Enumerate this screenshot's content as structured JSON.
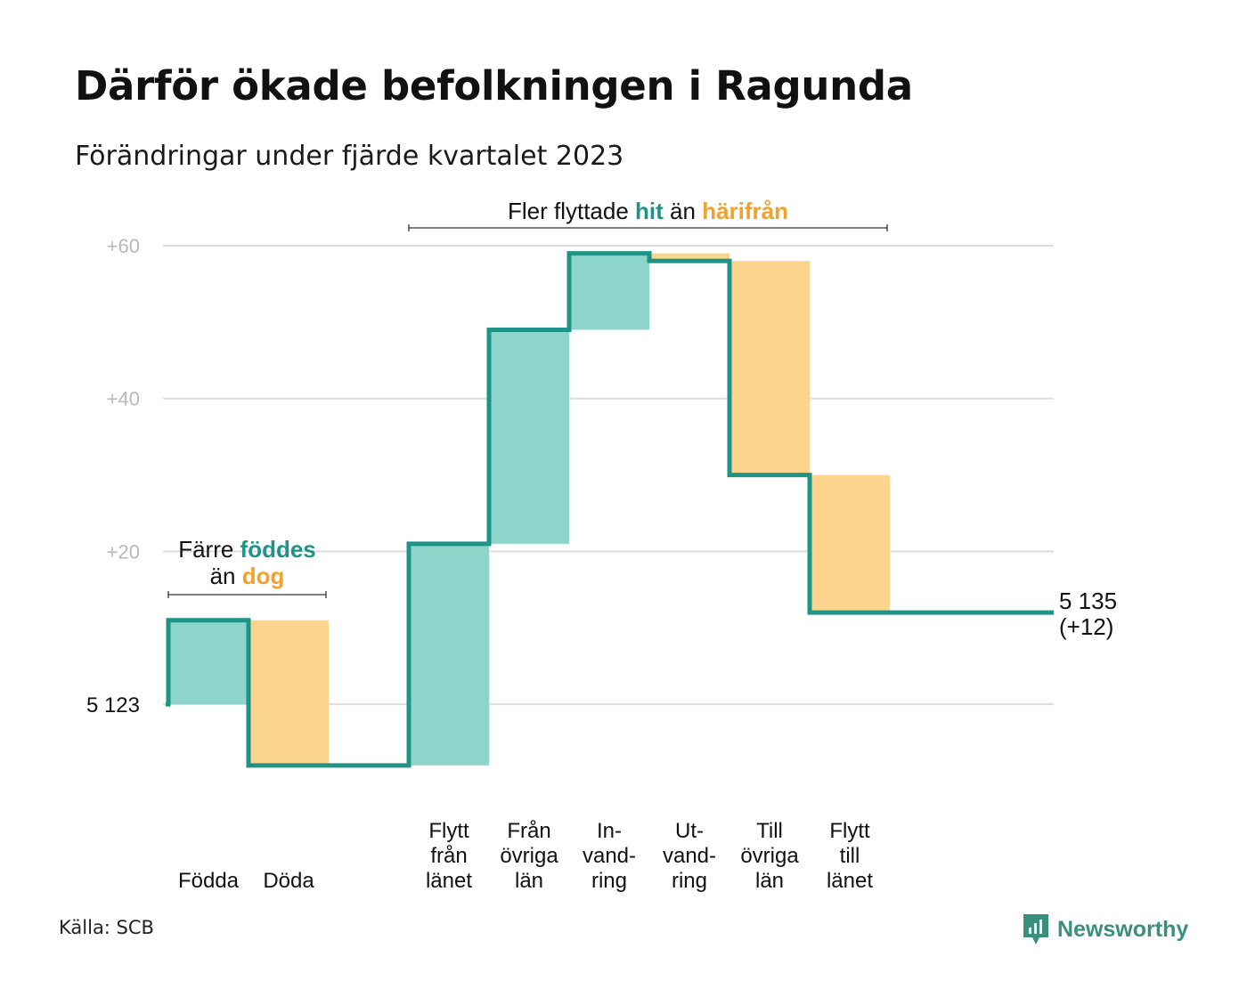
{
  "header": {
    "title": "Därför ökade befolkningen i Ragunda",
    "subtitle": "Förändringar under fjärde kvartalet 2023"
  },
  "footer": {
    "source": "Källa: SCB",
    "brand": "Newsworthy",
    "brand_icon": "newsworthy-logo-icon"
  },
  "colors": {
    "increase": "#8dd5cb",
    "decrease": "#fbd58d",
    "line": "#1f9486",
    "teal_text": "#1f9486",
    "orange_text": "#f2a12e",
    "grid": "#dddddd",
    "tick": "#b8b8b8"
  },
  "chart_data": {
    "type": "waterfall",
    "title": "Därför ökade befolkningen i Ragunda",
    "subtitle": "Förändringar under fjärde kvartalet 2023",
    "baseline_label": "5  123",
    "start_value": 5123,
    "ylim": [
      -10,
      60
    ],
    "grid": true,
    "yticks": [
      {
        "value": 20,
        "label": "+20"
      },
      {
        "value": 40,
        "label": "+40"
      },
      {
        "value": 60,
        "label": "+60"
      }
    ],
    "categories": [
      {
        "lines": [
          "Födda"
        ],
        "change": 11
      },
      {
        "lines": [
          "Döda"
        ],
        "change": -19
      },
      {
        "lines": [],
        "change": 0
      },
      {
        "lines": [
          "Flytt",
          "från",
          "länet"
        ],
        "change": 29
      },
      {
        "lines": [
          "Från",
          "övriga",
          "län"
        ],
        "change": 28
      },
      {
        "lines": [
          "In-",
          "vand-",
          "ring"
        ],
        "change": 10
      },
      {
        "lines": [
          "Ut-",
          "vand-",
          "ring"
        ],
        "change": -1
      },
      {
        "lines": [
          "Till",
          "övriga",
          "län"
        ],
        "change": -28
      },
      {
        "lines": [
          "Flytt",
          "till",
          "länet"
        ],
        "change": -18
      }
    ],
    "end_value": 12,
    "end_label": [
      "5 135",
      "(+12)"
    ],
    "annotations": [
      {
        "lines": [
          [
            {
              "text": "Färre ",
              "style": "plain"
            },
            {
              "text": "föddes",
              "style": "teal"
            }
          ],
          [
            {
              "text": "än ",
              "style": "plain"
            },
            {
              "text": "dog",
              "style": "orange"
            }
          ]
        ],
        "from": 0,
        "to": 1
      },
      {
        "lines": [
          [
            {
              "text": "Fler flyttade ",
              "style": "plain"
            },
            {
              "text": "hit",
              "style": "teal"
            },
            {
              "text": " än ",
              "style": "plain"
            },
            {
              "text": "härifrån",
              "style": "orange"
            }
          ]
        ],
        "from": 3,
        "to": 8
      }
    ]
  }
}
